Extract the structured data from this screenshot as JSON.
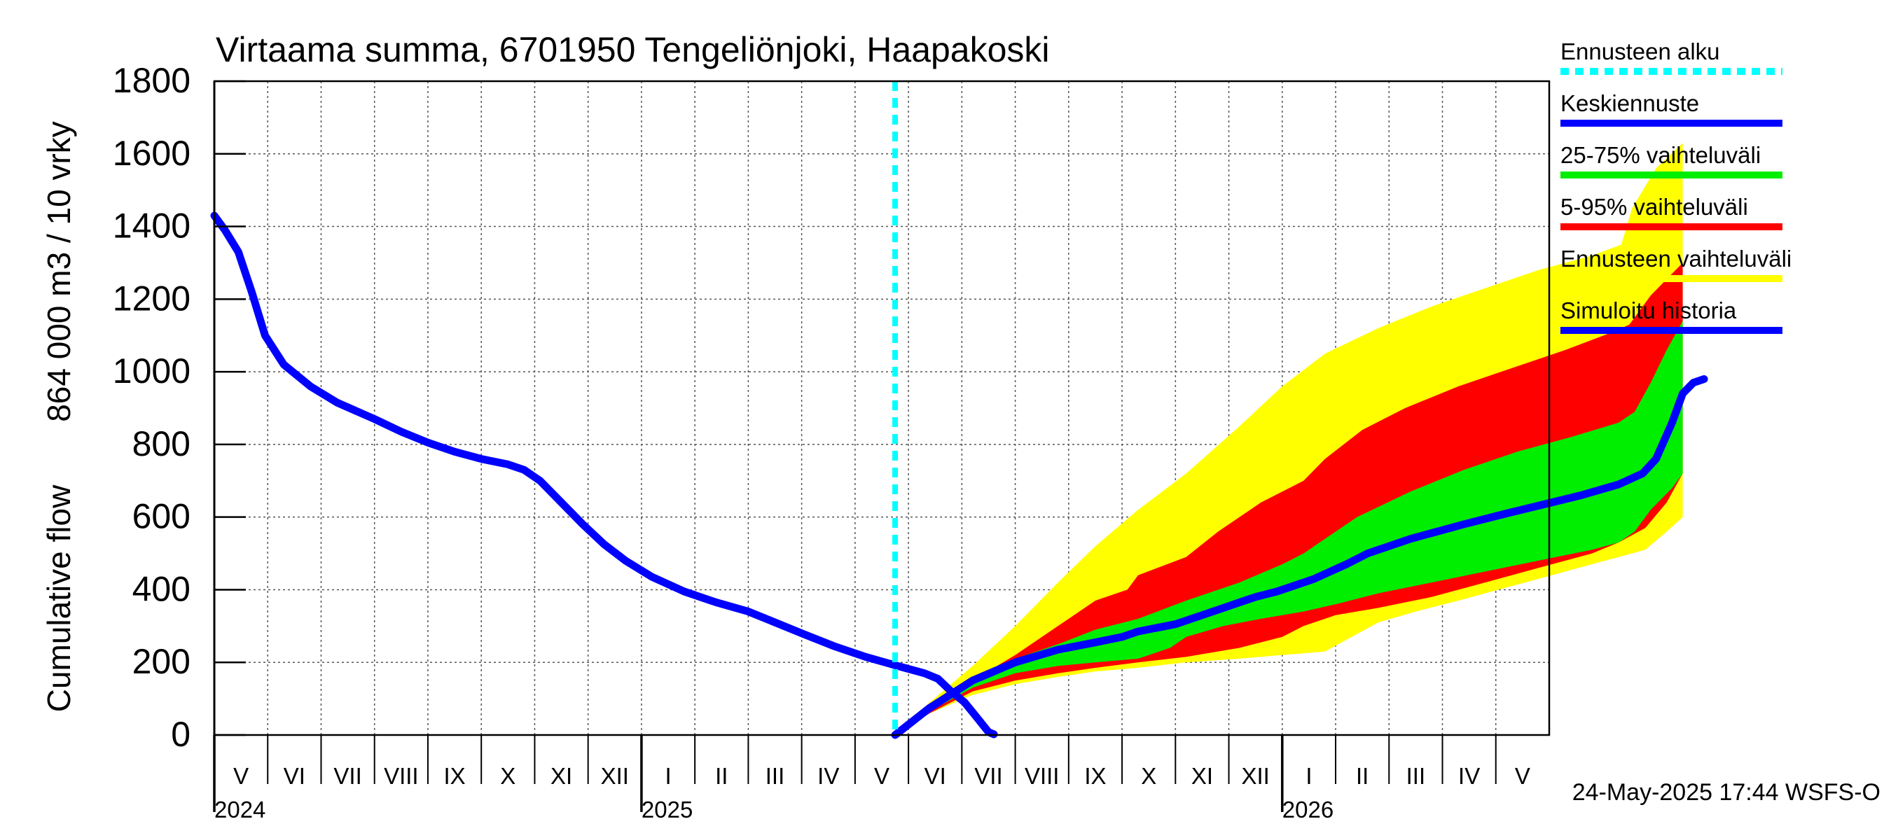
{
  "chart_data": {
    "type": "area",
    "title": "Virtaama summa, 6701950 Tengeliönjoki, Haapakoski",
    "ylabel_fi": "864 000 m3 / 10 vrky",
    "ylabel_en": "Cumulative flow",
    "ylim": [
      0,
      1800
    ],
    "yticks": [
      0,
      200,
      400,
      600,
      800,
      1000,
      1200,
      1400,
      1600,
      1800
    ],
    "x_range_month_index": [
      0,
      25
    ],
    "forecast_start_month_index": 12.75,
    "months": [
      {
        "label": "V",
        "start": 0
      },
      {
        "label": "VI",
        "start": 1
      },
      {
        "label": "VII",
        "start": 2
      },
      {
        "label": "VIII",
        "start": 3
      },
      {
        "label": "IX",
        "start": 4
      },
      {
        "label": "X",
        "start": 5
      },
      {
        "label": "XI",
        "start": 6
      },
      {
        "label": "XII",
        "start": 7
      },
      {
        "label": "I",
        "start": 8
      },
      {
        "label": "II",
        "start": 9
      },
      {
        "label": "III",
        "start": 10
      },
      {
        "label": "IV",
        "start": 11
      },
      {
        "label": "V",
        "start": 12
      },
      {
        "label": "VI",
        "start": 13
      },
      {
        "label": "VII",
        "start": 14
      },
      {
        "label": "VIII",
        "start": 15
      },
      {
        "label": "IX",
        "start": 16
      },
      {
        "label": "X",
        "start": 17
      },
      {
        "label": "XI",
        "start": 18
      },
      {
        "label": "XII",
        "start": 19
      },
      {
        "label": "I",
        "start": 20
      },
      {
        "label": "II",
        "start": 21
      },
      {
        "label": "III",
        "start": 22
      },
      {
        "label": "IV",
        "start": 23
      },
      {
        "label": "V",
        "start": 24
      }
    ],
    "years": [
      {
        "label": "2024",
        "at": 0
      },
      {
        "label": "2025",
        "at": 8
      },
      {
        "label": "2026",
        "at": 20
      }
    ],
    "series": [
      {
        "name": "Simuloitu historia",
        "kind": "line",
        "color": "#0000ff",
        "points": [
          [
            0,
            1430
          ],
          [
            0.2,
            1390
          ],
          [
            0.45,
            1330
          ],
          [
            0.7,
            1220
          ],
          [
            0.95,
            1100
          ],
          [
            1.3,
            1020
          ],
          [
            1.8,
            960
          ],
          [
            2.3,
            915
          ],
          [
            3,
            870
          ],
          [
            3.5,
            835
          ],
          [
            4,
            805
          ],
          [
            4.5,
            780
          ],
          [
            5,
            760
          ],
          [
            5.5,
            745
          ],
          [
            5.8,
            730
          ],
          [
            6.1,
            700
          ],
          [
            6.5,
            640
          ],
          [
            6.9,
            580
          ],
          [
            7.3,
            525
          ],
          [
            7.7,
            480
          ],
          [
            8.2,
            435
          ],
          [
            8.8,
            395
          ],
          [
            9.4,
            365
          ],
          [
            10,
            340
          ],
          [
            10.5,
            310
          ],
          [
            11,
            280
          ],
          [
            11.6,
            245
          ],
          [
            12.2,
            215
          ],
          [
            12.8,
            190
          ],
          [
            13.3,
            170
          ],
          [
            13.55,
            155
          ],
          [
            13.8,
            120
          ],
          [
            14.05,
            90
          ],
          [
            14.3,
            45
          ],
          [
            14.5,
            8
          ],
          [
            14.6,
            2
          ]
        ]
      },
      {
        "name": "Ennusteen vaihteluväli",
        "kind": "band",
        "color": "#ffff00",
        "upper": [
          [
            12.75,
            0
          ],
          [
            13.4,
            90
          ],
          [
            14.2,
            190
          ],
          [
            15,
            300
          ],
          [
            15.8,
            420
          ],
          [
            16.5,
            520
          ],
          [
            17.3,
            620
          ],
          [
            18.2,
            720
          ],
          [
            19.2,
            850
          ],
          [
            20,
            960
          ],
          [
            20.8,
            1050
          ],
          [
            21.8,
            1120
          ],
          [
            22.8,
            1180
          ],
          [
            23.8,
            1230
          ],
          [
            24.8,
            1280
          ],
          [
            25.8,
            1320
          ],
          [
            26.35,
            1350
          ],
          [
            26.55,
            1450
          ],
          [
            27,
            1560
          ],
          [
            27.5,
            1630
          ]
        ],
        "lower": [
          [
            12.75,
            0
          ],
          [
            13.4,
            60
          ],
          [
            14.2,
            110
          ],
          [
            15,
            140
          ],
          [
            15.8,
            160
          ],
          [
            16.5,
            175
          ],
          [
            17.3,
            185
          ],
          [
            18.2,
            200
          ],
          [
            19.2,
            210
          ],
          [
            20,
            220
          ],
          [
            20.8,
            230
          ],
          [
            21.3,
            270
          ],
          [
            21.8,
            310
          ],
          [
            22.5,
            340
          ],
          [
            23.3,
            370
          ],
          [
            24.3,
            410
          ],
          [
            25.3,
            450
          ],
          [
            26.3,
            490
          ],
          [
            26.8,
            510
          ],
          [
            27.2,
            560
          ],
          [
            27.5,
            600
          ]
        ]
      },
      {
        "name": "5-95% vaihteluväli",
        "kind": "band",
        "color": "#ff0000",
        "upper": [
          [
            12.75,
            0
          ],
          [
            13.4,
            80
          ],
          [
            14.2,
            150
          ],
          [
            15,
            220
          ],
          [
            15.8,
            300
          ],
          [
            16.5,
            370
          ],
          [
            17.1,
            400
          ],
          [
            17.3,
            440
          ],
          [
            18.2,
            490
          ],
          [
            18.8,
            560
          ],
          [
            19.6,
            640
          ],
          [
            20.4,
            700
          ],
          [
            20.8,
            760
          ],
          [
            21.5,
            840
          ],
          [
            22.3,
            900
          ],
          [
            23.3,
            960
          ],
          [
            24.3,
            1010
          ],
          [
            25.3,
            1060
          ],
          [
            26.2,
            1110
          ],
          [
            26.5,
            1130
          ],
          [
            26.9,
            1210
          ],
          [
            27.5,
            1300
          ]
        ],
        "lower": [
          [
            12.75,
            0
          ],
          [
            13.4,
            60
          ],
          [
            14.2,
            120
          ],
          [
            15,
            150
          ],
          [
            15.8,
            170
          ],
          [
            16.5,
            185
          ],
          [
            17.3,
            200
          ],
          [
            18.2,
            215
          ],
          [
            19.2,
            240
          ],
          [
            20,
            270
          ],
          [
            20.4,
            300
          ],
          [
            21,
            330
          ],
          [
            21.8,
            350
          ],
          [
            22.8,
            380
          ],
          [
            23.8,
            420
          ],
          [
            24.8,
            460
          ],
          [
            25.8,
            500
          ],
          [
            26.3,
            530
          ],
          [
            26.8,
            570
          ],
          [
            27.2,
            640
          ],
          [
            27.5,
            720
          ]
        ]
      },
      {
        "name": "25-75% vaihteluväli",
        "kind": "band",
        "color": "#00ee00",
        "upper": [
          [
            12.75,
            0
          ],
          [
            13.4,
            75
          ],
          [
            14.2,
            150
          ],
          [
            15,
            210
          ],
          [
            15.8,
            250
          ],
          [
            16.5,
            290
          ],
          [
            17.3,
            320
          ],
          [
            18.2,
            370
          ],
          [
            19.2,
            420
          ],
          [
            20,
            470
          ],
          [
            20.4,
            500
          ],
          [
            20.8,
            540
          ],
          [
            21.4,
            600
          ],
          [
            22.4,
            670
          ],
          [
            23.4,
            730
          ],
          [
            24.4,
            780
          ],
          [
            25.4,
            820
          ],
          [
            26.3,
            860
          ],
          [
            26.6,
            890
          ],
          [
            26.9,
            970
          ],
          [
            27.2,
            1060
          ],
          [
            27.5,
            1140
          ]
        ],
        "lower": [
          [
            12.75,
            0
          ],
          [
            13.4,
            65
          ],
          [
            14.2,
            130
          ],
          [
            15,
            170
          ],
          [
            15.8,
            190
          ],
          [
            16.5,
            200
          ],
          [
            17.3,
            210
          ],
          [
            17.9,
            240
          ],
          [
            18.2,
            270
          ],
          [
            18.9,
            300
          ],
          [
            19.6,
            320
          ],
          [
            20.4,
            340
          ],
          [
            21,
            360
          ],
          [
            21.8,
            390
          ],
          [
            22.8,
            420
          ],
          [
            23.8,
            450
          ],
          [
            24.8,
            480
          ],
          [
            25.8,
            510
          ],
          [
            26.3,
            530
          ],
          [
            26.6,
            560
          ],
          [
            26.9,
            620
          ],
          [
            27.3,
            680
          ],
          [
            27.5,
            720
          ]
        ]
      },
      {
        "name": "Keskiennuste",
        "kind": "line",
        "color": "#0000ff",
        "points": [
          [
            12.75,
            0
          ],
          [
            13.4,
            75
          ],
          [
            14.2,
            150
          ],
          [
            15,
            200
          ],
          [
            15.8,
            235
          ],
          [
            16.5,
            255
          ],
          [
            17,
            270
          ],
          [
            17.3,
            285
          ],
          [
            18,
            305
          ],
          [
            18.6,
            335
          ],
          [
            19.2,
            365
          ],
          [
            19.5,
            380
          ],
          [
            19.9,
            395
          ],
          [
            20.6,
            430
          ],
          [
            21.2,
            470
          ],
          [
            21.6,
            500
          ],
          [
            22.4,
            540
          ],
          [
            23.4,
            580
          ],
          [
            24.2,
            610
          ],
          [
            24.9,
            635
          ],
          [
            25.6,
            660
          ],
          [
            26.3,
            690
          ],
          [
            26.75,
            720
          ],
          [
            27,
            760
          ],
          [
            27.3,
            860
          ],
          [
            27.5,
            940
          ],
          [
            27.7,
            970
          ],
          [
            27.9,
            980
          ]
        ]
      }
    ],
    "legend": [
      {
        "label": "Ennusteen alku",
        "color": "#00ffff",
        "style": "dashed"
      },
      {
        "label": "Keskiennuste",
        "color": "#0000ff",
        "style": "solid"
      },
      {
        "label": "25-75% vaihteluväli",
        "color": "#00ee00",
        "style": "solid"
      },
      {
        "label": "5-95% vaihteluväli",
        "color": "#ff0000",
        "style": "solid"
      },
      {
        "label": "Ennusteen vaihteluväli",
        "color": "#ffff00",
        "style": "solid"
      },
      {
        "label": "Simuloitu historia",
        "color": "#0000ff",
        "style": "solid"
      }
    ],
    "footer_timestamp": "24-May-2025 17:44 WSFS-O"
  }
}
